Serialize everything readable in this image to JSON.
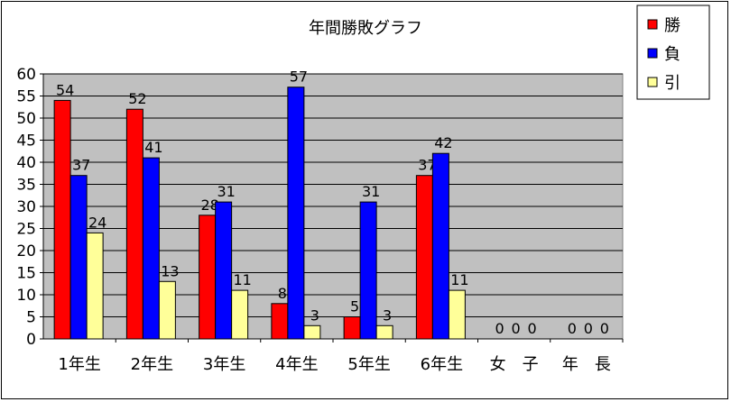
{
  "chart_data": {
    "type": "bar",
    "title": "年間勝敗グラフ",
    "categories": [
      "1年生",
      "2年生",
      "3年生",
      "4年生",
      "5年生",
      "6年生",
      "女　子",
      "年　長"
    ],
    "series": [
      {
        "name": "勝",
        "color": "#ff0000",
        "values": [
          54,
          52,
          28,
          8,
          5,
          37,
          0,
          0
        ]
      },
      {
        "name": "負",
        "color": "#0000ff",
        "values": [
          37,
          41,
          31,
          57,
          31,
          42,
          0,
          0
        ]
      },
      {
        "name": "引",
        "color": "#ffff99",
        "values": [
          24,
          13,
          11,
          3,
          3,
          11,
          0,
          0
        ]
      }
    ],
    "ylim": [
      0,
      60
    ],
    "yticks": [
      0,
      5,
      10,
      15,
      20,
      25,
      30,
      35,
      40,
      45,
      50,
      55,
      60
    ],
    "plot_background": "#c0c0c0",
    "grid": true,
    "legend_position": "top-right",
    "data_labels": true
  }
}
